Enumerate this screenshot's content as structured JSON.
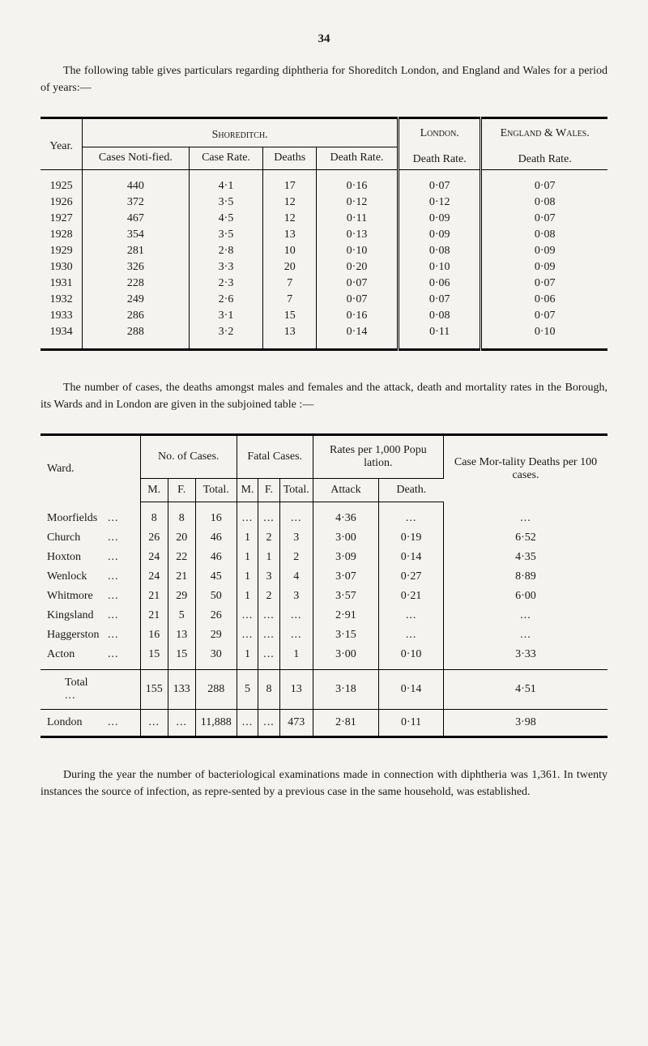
{
  "page_number": "34",
  "intro1": "The following table gives particulars regarding diphtheria for Shoreditch London, and England and Wales for a period of years:—",
  "table1": {
    "headers": {
      "year": "Year.",
      "shoreditch": "Shoreditch.",
      "cases_notified": "Cases Noti-fied.",
      "case_rate": "Case Rate.",
      "deaths": "Deaths",
      "death_rate": "Death Rate.",
      "london": "London.",
      "london_dr": "Death Rate.",
      "ew": "England & Wales.",
      "ew_dr": "Death Rate."
    },
    "rows": [
      {
        "year": "1925",
        "cases": "440",
        "cr": "4·1",
        "deaths": "17",
        "dr": "0·16",
        "ldr": "0·07",
        "ewdr": "0·07"
      },
      {
        "year": "1926",
        "cases": "372",
        "cr": "3·5",
        "deaths": "12",
        "dr": "0·12",
        "ldr": "0·12",
        "ewdr": "0·08"
      },
      {
        "year": "1927",
        "cases": "467",
        "cr": "4·5",
        "deaths": "12",
        "dr": "0·11",
        "ldr": "0·09",
        "ewdr": "0·07"
      },
      {
        "year": "1928",
        "cases": "354",
        "cr": "3·5",
        "deaths": "13",
        "dr": "0·13",
        "ldr": "0·09",
        "ewdr": "0·08"
      },
      {
        "year": "1929",
        "cases": "281",
        "cr": "2·8",
        "deaths": "10",
        "dr": "0·10",
        "ldr": "0·08",
        "ewdr": "0·09"
      },
      {
        "year": "1930",
        "cases": "326",
        "cr": "3·3",
        "deaths": "20",
        "dr": "0·20",
        "ldr": "0·10",
        "ewdr": "0·09"
      },
      {
        "year": "1931",
        "cases": "228",
        "cr": "2·3",
        "deaths": "7",
        "dr": "0·07",
        "ldr": "0·06",
        "ewdr": "0·07"
      },
      {
        "year": "1932",
        "cases": "249",
        "cr": "2·6",
        "deaths": "7",
        "dr": "0·07",
        "ldr": "0·07",
        "ewdr": "0·06"
      },
      {
        "year": "1933",
        "cases": "286",
        "cr": "3·1",
        "deaths": "15",
        "dr": "0·16",
        "ldr": "0·08",
        "ewdr": "0·07"
      },
      {
        "year": "1934",
        "cases": "288",
        "cr": "3·2",
        "deaths": "13",
        "dr": "0·14",
        "ldr": "0·11",
        "ewdr": "0·10"
      }
    ]
  },
  "intro2": "The number of cases, the deaths amongst males and females and the attack, death and mortality rates in the Borough, its Wards and in London are given in the subjoined table :—",
  "table2": {
    "headers": {
      "ward": "Ward.",
      "no_cases": "No. of Cases.",
      "fatal": "Fatal  Cases.",
      "rates": "Rates per 1,000 Popu lation.",
      "mortality": "Case Mor-tality Deaths per 100 cases.",
      "m": "M.",
      "f": "F.",
      "total": "Total.",
      "attack": "Attack",
      "death": "Death."
    },
    "rows": [
      {
        "ward": "Moorfields",
        "m": "8",
        "f": "8",
        "t": "16",
        "fm": "",
        "ff": "",
        "ft": "",
        "atk": "4·36",
        "dth": "",
        "mort": ""
      },
      {
        "ward": "Church",
        "m": "26",
        "f": "20",
        "t": "46",
        "fm": "1",
        "ff": "2",
        "ft": "3",
        "atk": "3·00",
        "dth": "0·19",
        "mort": "6·52"
      },
      {
        "ward": "Hoxton",
        "m": "24",
        "f": "22",
        "t": "46",
        "fm": "1",
        "ff": "1",
        "ft": "2",
        "atk": "3·09",
        "dth": "0·14",
        "mort": "4·35"
      },
      {
        "ward": "Wenlock",
        "m": "24",
        "f": "21",
        "t": "45",
        "fm": "1",
        "ff": "3",
        "ft": "4",
        "atk": "3·07",
        "dth": "0·27",
        "mort": "8·89"
      },
      {
        "ward": "Whitmore",
        "m": "21",
        "f": "29",
        "t": "50",
        "fm": "1",
        "ff": "2",
        "ft": "3",
        "atk": "3·57",
        "dth": "0·21",
        "mort": "6·00"
      },
      {
        "ward": "Kingsland",
        "m": "21",
        "f": "5",
        "t": "26",
        "fm": "",
        "ff": "",
        "ft": "",
        "atk": "2·91",
        "dth": "",
        "mort": ""
      },
      {
        "ward": "Haggerston",
        "m": "16",
        "f": "13",
        "t": "29",
        "fm": "",
        "ff": "",
        "ft": "",
        "atk": "3·15",
        "dth": "",
        "mort": ""
      },
      {
        "ward": "Acton",
        "m": "15",
        "f": "15",
        "t": "30",
        "fm": "1",
        "ff": "",
        "ft": "1",
        "atk": "3·00",
        "dth": "0·10",
        "mort": "3·33"
      }
    ],
    "total": {
      "ward": "Total",
      "m": "155",
      "f": "133",
      "t": "288",
      "fm": "5",
      "ff": "8",
      "ft": "13",
      "atk": "3·18",
      "dth": "0·14",
      "mort": "4·51"
    },
    "london": {
      "ward": "London",
      "m": "",
      "f": "",
      "t": "11,888",
      "fm": "",
      "ff": "",
      "ft": "473",
      "atk": "2·81",
      "dth": "0·11",
      "mort": "3·98"
    }
  },
  "outro": "During the year the number of bacteriological examinations made in connection with diphtheria was 1,361.  In twenty instances the source of infection, as repre-sented by a previous case in the same household, was established."
}
